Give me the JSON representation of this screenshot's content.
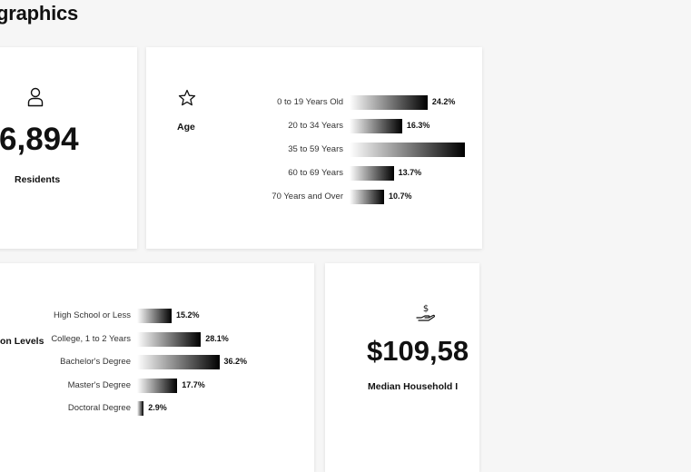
{
  "page": {
    "title": "graphics"
  },
  "residents": {
    "icon": "person-icon",
    "value": "6,894",
    "label": "Residents"
  },
  "age": {
    "icon": "star-icon",
    "label": "Age",
    "rows": [
      {
        "label": "0 to 19 Years Old",
        "value": 24.2,
        "value_label": "24.2%"
      },
      {
        "label": "20 to 34 Years",
        "value": 16.3,
        "value_label": "16.3%"
      },
      {
        "label": "35 to 59 Years",
        "value": 35.8,
        "value_label": ""
      },
      {
        "label": "60 to 69 Years",
        "value": 13.7,
        "value_label": "13.7%"
      },
      {
        "label": "70 Years and Over",
        "value": 10.7,
        "value_label": "10.7%"
      }
    ]
  },
  "education": {
    "label": "on Levels",
    "rows": [
      {
        "label": "High School or Less",
        "value": 15.2,
        "value_label": "15.2%"
      },
      {
        "label": "College, 1 to 2 Years",
        "value": 28.1,
        "value_label": "28.1%"
      },
      {
        "label": "Bachelor's Degree",
        "value": 36.2,
        "value_label": "36.2%"
      },
      {
        "label": "Master's Degree",
        "value": 17.7,
        "value_label": "17.7%"
      },
      {
        "label": "Doctoral Degree",
        "value": 2.9,
        "value_label": "2.9%"
      }
    ]
  },
  "income": {
    "icon": "hand-dollar-icon",
    "value": "$109,58",
    "label": "Median Household I"
  },
  "colors": {
    "bar_start": "#ffffff",
    "bar_end": "#000000",
    "card_bg": "#ffffff",
    "page_bg": "#f6f6f6"
  }
}
